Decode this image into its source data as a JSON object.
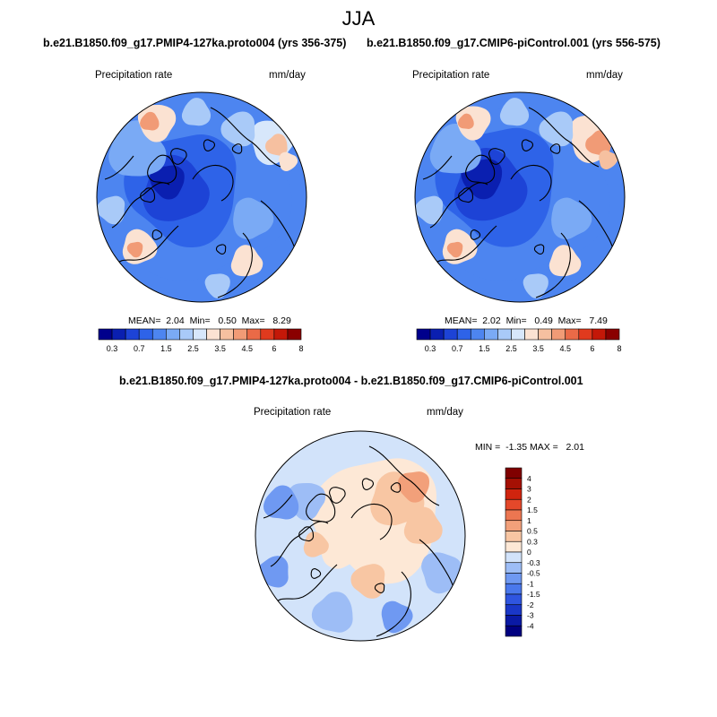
{
  "main_title": "JJA",
  "colors": {
    "precip": [
      "#00008c",
      "#0a1fb0",
      "#1d43d6",
      "#2e63e8",
      "#4d85f0",
      "#7aaaf5",
      "#a9caf8",
      "#d7e7fb",
      "#fbe2d2",
      "#f6c0a0",
      "#f19b76",
      "#ea6a47",
      "#e03a1e",
      "#c41808",
      "#8a0000"
    ],
    "diff": [
      "#000080",
      "#0a1aa5",
      "#1a37c8",
      "#2f55e0",
      "#4a78ec",
      "#6f99f2",
      "#9dbdf6",
      "#d2e3fa",
      "#fde8d6",
      "#f8c6a3",
      "#f2a07a",
      "#ec7651",
      "#e4482a",
      "#d0240e",
      "#a51004",
      "#800000"
    ]
  },
  "chart_data": [
    {
      "type": "heatmap",
      "projection": "north polar stereographic",
      "title": "b.e21.B1850.f09_g17.PMIP4-127ka.proto004 (yrs 356-375)",
      "variable": "Precipitation rate",
      "units": "mm/day",
      "stats": {
        "mean": "2.04",
        "min": "0.50",
        "max": "8.29"
      },
      "stats_text": "MEAN=  2.04  Min=   0.50  Max=   8.29",
      "colorbar_ticks": [
        "0.3",
        "0.7",
        "1.5",
        "2.5",
        "3.5",
        "4.5",
        "6",
        "8"
      ],
      "levels": [
        0.3,
        0.5,
        0.7,
        1,
        1.5,
        2,
        2.5,
        3,
        3.5,
        4,
        4.5,
        5,
        6,
        7,
        8
      ]
    },
    {
      "type": "heatmap",
      "projection": "north polar stereographic",
      "title": "b.e21.B1850.f09_g17.CMIP6-piControl.001 (yrs 556-575)",
      "variable": "Precipitation rate",
      "units": "mm/day",
      "stats": {
        "mean": "2.02",
        "min": "0.49",
        "max": "7.49"
      },
      "stats_text": "MEAN=  2.02  Min=   0.49  Max=   7.49",
      "colorbar_ticks": [
        "0.3",
        "0.7",
        "1.5",
        "2.5",
        "3.5",
        "4.5",
        "6",
        "8"
      ],
      "levels": [
        0.3,
        0.5,
        0.7,
        1,
        1.5,
        2,
        2.5,
        3,
        3.5,
        4,
        4.5,
        5,
        6,
        7,
        8
      ]
    },
    {
      "type": "heatmap",
      "projection": "north polar stereographic",
      "title": "b.e21.B1850.f09_g17.PMIP4-127ka.proto004 - b.e21.B1850.f09_g17.CMIP6-piControl.001",
      "variable": "Precipitation rate",
      "units": "mm/day",
      "stats": {
        "min": "-1.35",
        "max": "2.01"
      },
      "stats_text": "MIN =  -1.35 MAX =   2.01",
      "colorbar_ticks": [
        "4",
        "3",
        "2",
        "1.5",
        "1",
        "0.5",
        "0.3",
        "0",
        "-0.3",
        "-0.5",
        "-1",
        "-1.5",
        "-2",
        "-3",
        "-4"
      ],
      "levels": [
        -4,
        -3,
        -2,
        -1.5,
        -1,
        -0.5,
        -0.3,
        0,
        0.3,
        0.5,
        1,
        1.5,
        2,
        3,
        4
      ]
    }
  ]
}
